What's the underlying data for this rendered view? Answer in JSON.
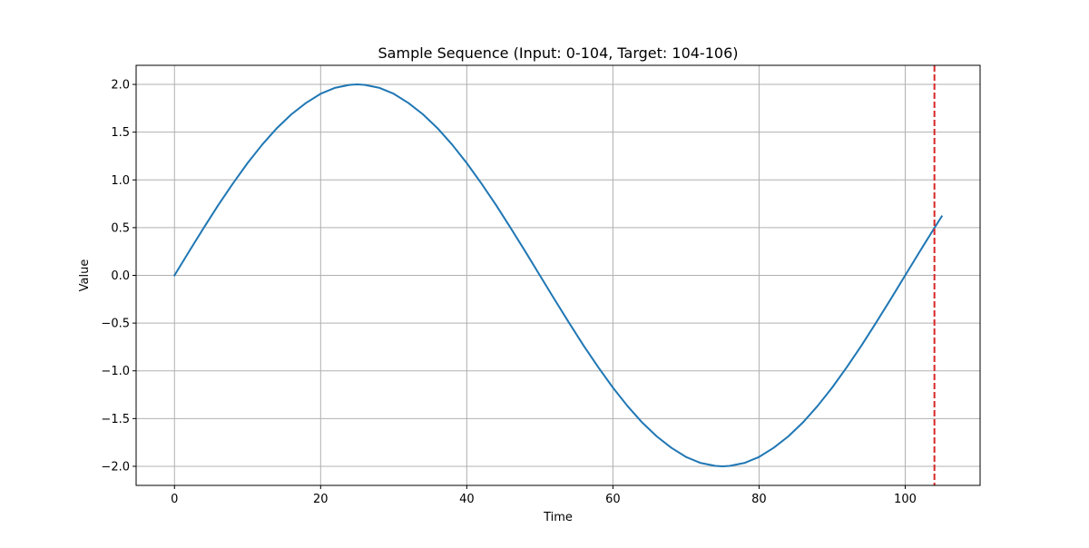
{
  "chart_data": {
    "type": "line",
    "title": "Sample Sequence (Input: 0-104, Target: 104-106)",
    "xlabel": "Time",
    "ylabel": "Value",
    "xlim": [
      -5.25,
      110.25
    ],
    "ylim": [
      -2.2,
      2.2
    ],
    "xticks": [
      0,
      20,
      40,
      60,
      80,
      100
    ],
    "xtick_labels": [
      "0",
      "20",
      "40",
      "60",
      "80",
      "100"
    ],
    "yticks": [
      2.0,
      1.5,
      1.0,
      0.5,
      0.0,
      -0.5,
      -1.0,
      -1.5,
      -2.0
    ],
    "ytick_labels": [
      "2.0",
      "1.5",
      "1.0",
      "0.5",
      "0.0",
      "−0.5",
      "−1.0",
      "−1.5",
      "−2.0"
    ],
    "grid": true,
    "series": [
      {
        "color": "#1f77b4",
        "x": [
          0,
          2,
          4,
          6,
          8,
          10,
          12,
          14,
          16,
          18,
          20,
          22,
          24,
          25,
          26,
          28,
          30,
          32,
          34,
          36,
          38,
          40,
          42,
          44,
          46,
          48,
          50,
          52,
          54,
          56,
          58,
          60,
          62,
          64,
          66,
          68,
          70,
          72,
          74,
          75,
          76,
          78,
          80,
          82,
          84,
          86,
          88,
          90,
          92,
          94,
          96,
          98,
          100,
          102,
          104,
          105
        ],
        "y": [
          0.0,
          0.251,
          0.497,
          0.737,
          0.963,
          1.176,
          1.369,
          1.541,
          1.687,
          1.806,
          1.902,
          1.965,
          1.996,
          2.0,
          1.996,
          1.965,
          1.902,
          1.806,
          1.687,
          1.541,
          1.369,
          1.176,
          0.963,
          0.737,
          0.497,
          0.251,
          0.0,
          -0.251,
          -0.497,
          -0.737,
          -0.963,
          -1.176,
          -1.369,
          -1.541,
          -1.687,
          -1.806,
          -1.902,
          -1.965,
          -1.996,
          -2.0,
          -1.996,
          -1.965,
          -1.902,
          -1.806,
          -1.687,
          -1.541,
          -1.369,
          -1.176,
          -0.963,
          -0.737,
          -0.497,
          -0.251,
          0.0,
          0.251,
          0.497,
          0.618
        ]
      }
    ],
    "vlines": [
      {
        "x": 104,
        "color": "#d62728",
        "style": "dashed"
      }
    ]
  }
}
